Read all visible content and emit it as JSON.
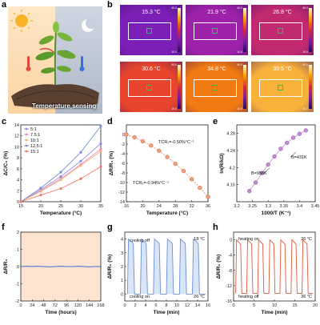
{
  "panel_labels": [
    "a",
    "b",
    "c",
    "d",
    "e",
    "f",
    "g",
    "h"
  ],
  "illustration": {
    "caption": "Temperature sensing"
  },
  "thermal": [
    {
      "temp": "15.3 °C",
      "color": "#7b1fb6",
      "cmax": "40.0",
      "cmin": "10.0"
    },
    {
      "temp": "21.9 °C",
      "color": "#9d22a9",
      "cmax": "40.0",
      "cmin": "10.0"
    },
    {
      "temp": "26.8 °C",
      "color": "#c2296f",
      "cmax": "40.0",
      "cmin": "10.0"
    },
    {
      "temp": "30.6 °C",
      "color": "#e8452c",
      "cmax": "40.0",
      "cmin": "10.0"
    },
    {
      "temp": "34.8 °C",
      "color": "#f27a12",
      "cmax": "40.0",
      "cmin": "10.0"
    },
    {
      "temp": "39.5 °C",
      "color": "#f8b23a",
      "cmax": "40.0",
      "cmin": "10.0"
    }
  ],
  "chart_data": [
    {
      "id": "c",
      "type": "line",
      "xlabel": "Temperature (°C)",
      "ylabel": "ΔC/C₀ (%)",
      "xlim": [
        15,
        35
      ],
      "ylim": [
        0,
        14
      ],
      "xticks": [
        15,
        20,
        25,
        30,
        35
      ],
      "yticks": [
        0,
        2,
        4,
        6,
        8,
        10,
        12,
        14
      ],
      "x": [
        15,
        20,
        25,
        30,
        35
      ],
      "series": [
        {
          "name": "5:1",
          "color": "#9a8ad6",
          "values": [
            0,
            2.2,
            4.6,
            7.4,
            10.6
          ]
        },
        {
          "name": "7.5:1",
          "color": "#e58dc7",
          "values": [
            0,
            2.0,
            4.2,
            6.8,
            9.6
          ]
        },
        {
          "name": "10:1",
          "color": "#f2b27a",
          "values": [
            0,
            1.9,
            4.0,
            6.6,
            9.2
          ]
        },
        {
          "name": "12.5:1",
          "color": "#7a8fd6",
          "values": [
            0,
            2.5,
            5.4,
            9.0,
            13.8
          ]
        },
        {
          "name": "15:1",
          "color": "#ef7a6a",
          "values": [
            0,
            1.2,
            2.4,
            4.2,
            6.4
          ]
        }
      ]
    },
    {
      "id": "d",
      "type": "scatter",
      "xlabel": "Temperature (°C)",
      "ylabel": "ΔR/R₀ (%)",
      "xlim": [
        16,
        36
      ],
      "ylim": [
        -14,
        2
      ],
      "xticks": [
        16,
        20,
        24,
        28,
        32,
        36
      ],
      "yticks": [
        0,
        -2,
        -4,
        -6,
        -8,
        -10,
        -12,
        -14
      ],
      "x": [
        16,
        18,
        20,
        22,
        24,
        26,
        28,
        30,
        32,
        34,
        36
      ],
      "y": [
        0,
        -0.6,
        -1.4,
        -2.3,
        -3.4,
        -4.7,
        -6.1,
        -7.6,
        -9.3,
        -11.1,
        -13.0
      ],
      "annotations": [
        "TCR₁=-0.50%°C⁻¹",
        "TCR₂=-0.94%°C⁻¹"
      ]
    },
    {
      "id": "e",
      "type": "scatter",
      "xlabel": "1000/T (K⁻¹)",
      "ylabel": "ln(R/kΩ)",
      "xlim": [
        3.2,
        3.45
      ],
      "ylim": [
        4.12,
        4.3
      ],
      "xticks": [
        3.2,
        3.25,
        3.3,
        3.35,
        3.4,
        3.45
      ],
      "yticks": [
        4.16,
        4.2,
        4.24,
        4.28
      ],
      "x": [
        3.24,
        3.26,
        3.28,
        3.3,
        3.32,
        3.34,
        3.36,
        3.38,
        3.4,
        3.42
      ],
      "y": [
        4.145,
        4.165,
        4.187,
        4.207,
        4.226,
        4.244,
        4.258,
        4.27,
        4.279,
        4.287
      ],
      "annotations": [
        "B=956K",
        "B=431K"
      ]
    },
    {
      "id": "f",
      "type": "line",
      "xlabel": "Time (hours)",
      "ylabel": "ΔR/R₀",
      "xlim": [
        0,
        168
      ],
      "ylim": [
        -2,
        2
      ],
      "xticks": [
        0,
        24,
        48,
        72,
        96,
        120,
        144,
        168
      ],
      "yticks": [
        -2,
        -1,
        0,
        1,
        2
      ],
      "x": [
        0,
        12,
        24,
        36,
        48,
        60,
        72,
        84,
        96,
        108,
        120,
        132,
        144,
        156,
        168
      ],
      "y": [
        0,
        0.02,
        0,
        0.02,
        0,
        -0.02,
        0,
        0.02,
        0,
        0,
        0.02,
        0,
        -0.02,
        0,
        0
      ]
    },
    {
      "id": "g",
      "type": "line",
      "xlabel": "Time (min)",
      "ylabel": "ΔR/R₀ (%)",
      "xlim": [
        0,
        16
      ],
      "ylim": [
        -0.5,
        4.5
      ],
      "xticks": [
        0,
        2,
        4,
        6,
        8,
        10,
        12,
        14,
        16
      ],
      "yticks": [
        0,
        1,
        2,
        3,
        4
      ],
      "cycles": 6,
      "high": 4,
      "low": 0,
      "annotations": [
        "cooling off",
        "cooling on",
        "18 °C",
        "26 °C"
      ]
    },
    {
      "id": "h",
      "type": "line",
      "xlabel": "Time (min)",
      "ylabel": "ΔR/R₀ (%)",
      "xlim": [
        0,
        20
      ],
      "ylim": [
        -16,
        2
      ],
      "xticks": [
        0,
        5,
        10,
        15,
        20
      ],
      "yticks": [
        0,
        -4,
        -8,
        -12,
        -16
      ],
      "cycles": 7,
      "high": 0,
      "low": -14,
      "annotations": [
        "heating on",
        "heating off",
        "26 °C",
        "36 °C"
      ]
    }
  ]
}
